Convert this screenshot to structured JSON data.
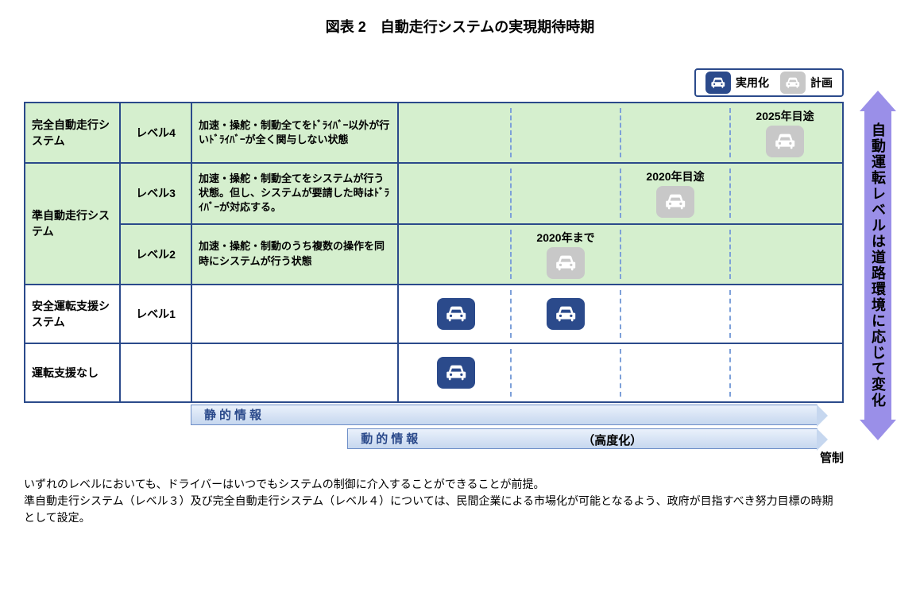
{
  "title": "図表 2　自動走行システムの実現期待時期",
  "colors": {
    "border": "#2b4a8b",
    "green_bg": "#d5efce",
    "dash": "#7da0d9",
    "bar_top": "#eaf1fb",
    "bar_bottom": "#c6d7ef",
    "arrow": "#9a8fe8",
    "icon_active": "#2b4a8b",
    "icon_plan": "#c8c8c8"
  },
  "legend": {
    "active": "実用化",
    "plan": "計画"
  },
  "lane_count": 4,
  "rows": [
    {
      "category": "完全自動走行システム",
      "level": "レベル4",
      "desc": "加速・操舵・制動全てをﾄﾞﾗｲﾊﾞｰ以外が行いﾄﾞﾗｲﾊﾞｰが全く関与しない状態",
      "green": true,
      "icons": [
        {
          "col": 3,
          "type": "plan",
          "year": "2025年目途"
        }
      ]
    },
    {
      "category": "準自動走行システム",
      "category_rowspan": 2,
      "level": "レベル3",
      "desc": "加速・操舵・制動全てをシステムが行う状態。但し、システムが要請した時はﾄﾞﾗｲﾊﾞｰが対応する。",
      "green": true,
      "icons": [
        {
          "col": 2,
          "type": "plan",
          "year": "2020年目途"
        }
      ]
    },
    {
      "level": "レベル2",
      "desc": "加速・操舵・制動のうち複数の操作を同時にシステムが行う状態",
      "green": true,
      "icons": [
        {
          "col": 1,
          "type": "plan",
          "year": "2020年まで"
        }
      ]
    },
    {
      "category": "安全運転支援システム",
      "level": "レベル1",
      "desc": "",
      "green": false,
      "icons": [
        {
          "col": 0,
          "type": "active"
        },
        {
          "col": 1,
          "type": "active"
        }
      ]
    },
    {
      "category": "運転支援なし",
      "level": "",
      "desc": "",
      "green": false,
      "icons": [
        {
          "col": 0,
          "type": "active"
        }
      ]
    }
  ],
  "bars": [
    {
      "label": "静的情報",
      "left_pct": 0,
      "width_pct": 96
    },
    {
      "label": "動的情報",
      "left_pct": 24,
      "width_pct": 72,
      "extra": "（高度化）",
      "extra_left_pct": 60
    }
  ],
  "bar_tail_label": "管制",
  "side_arrow_text": "自動運転レベルは道路環境に応じて変化",
  "footnote1": "いずれのレベルにおいても、ドライバーはいつでもシステムの制御に介入することができることが前提。",
  "footnote2": "準自動走行システム（レベル３）及び完全自動走行システム（レベル４）については、民間企業による市場化が可能となるよう、政府が目指すべき努力目標の時期として設定。"
}
